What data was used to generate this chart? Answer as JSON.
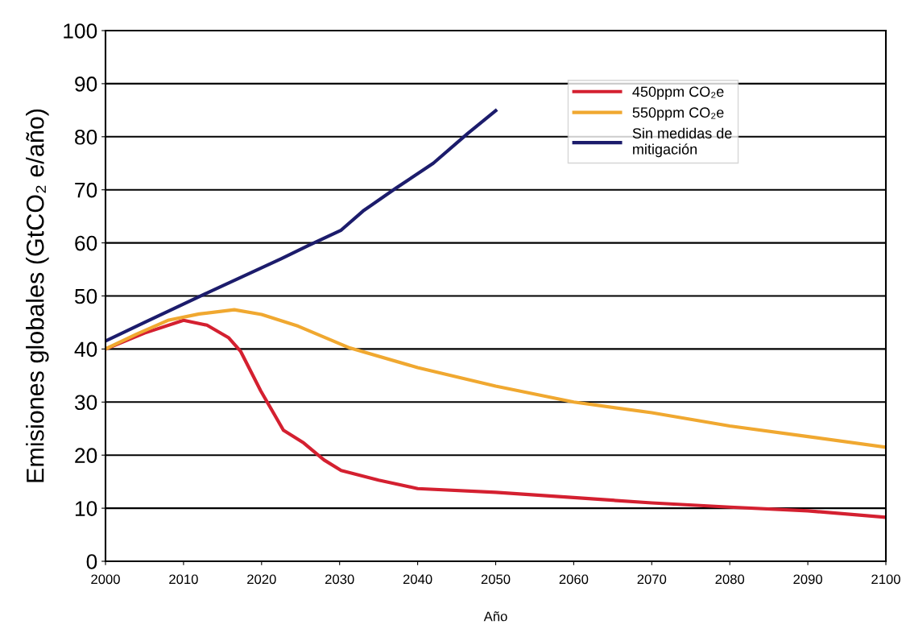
{
  "chart_data": {
    "type": "line",
    "xlabel": "Año",
    "ylabel": "Emisiones globales (GtCO₂ e/año)",
    "xlim": [
      2000,
      2100
    ],
    "xticks": [
      2000,
      2010,
      2020,
      2030,
      2040,
      2050,
      2060,
      2070,
      2080,
      2090,
      2100
    ],
    "ylim": [
      0,
      100
    ],
    "yticks": [
      0,
      10,
      20,
      30,
      40,
      50,
      60,
      70,
      80,
      90,
      100
    ],
    "grid": "y",
    "legend": "top right",
    "marker": "none",
    "line_style": "solid",
    "series": [
      {
        "name": "450ppm CO₂e",
        "color": "#d42030",
        "x": [
          2000,
          2005,
          2010,
          2013,
          2015.8,
          2017.3,
          2019.9,
          2022.8,
          2025.4,
          2028,
          2030.2,
          2035,
          2040,
          2050,
          2060,
          2070,
          2080,
          2090,
          2100
        ],
        "values": [
          40,
          43,
          45.4,
          44.5,
          42.1,
          39.6,
          32.1,
          24.7,
          22.3,
          19.1,
          17.1,
          15.3,
          13.7,
          13,
          12,
          11,
          10.2,
          9.5,
          8.3
        ]
      },
      {
        "name": "550ppm CO₂e",
        "color": "#f0a830",
        "x": [
          2000,
          2004,
          2008,
          2012,
          2016.5,
          2020,
          2024.7,
          2031.3,
          2040,
          2050,
          2060,
          2070,
          2080,
          2090,
          2100
        ],
        "values": [
          40,
          42.8,
          45.4,
          46.6,
          47.4,
          46.5,
          44.3,
          40.2,
          36.5,
          33,
          30,
          28,
          25.5,
          23.5,
          21.5
        ]
      },
      {
        "name": "Sin medidas de\nmitigación",
        "color": "#1c1c6c",
        "x": [
          2000,
          2005,
          2012.5,
          2022.5,
          2026,
          2030.2,
          2033,
          2037.2,
          2042,
          2046.4,
          2050
        ],
        "values": [
          41.5,
          45,
          50.2,
          57,
          59.5,
          62.4,
          66,
          70.3,
          75,
          80.6,
          84.9
        ]
      }
    ]
  }
}
